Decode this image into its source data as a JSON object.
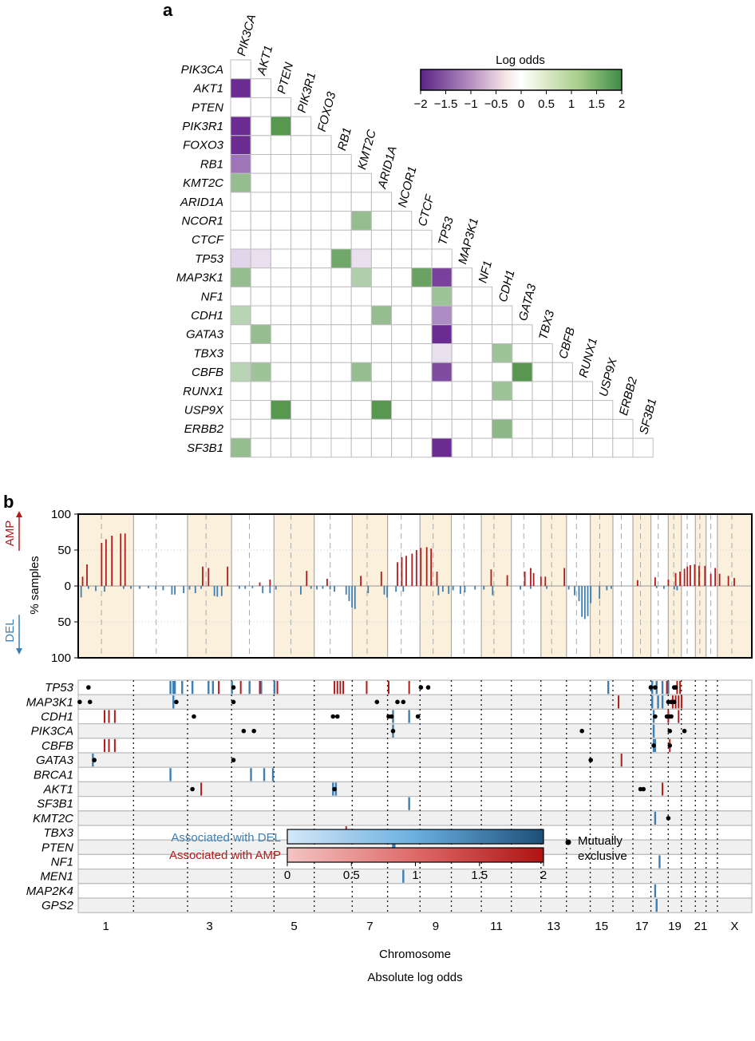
{
  "panel_a": {
    "label": "a",
    "chart_data": {
      "type": "heatmap",
      "genes": [
        "PIK3CA",
        "AKT1",
        "PTEN",
        "PIK3R1",
        "FOXO3",
        "RB1",
        "KMT2C",
        "ARID1A",
        "NCOR1",
        "CTCF",
        "TP53",
        "MAP3K1",
        "NF1",
        "CDH1",
        "GATA3",
        "TBX3",
        "CBFB",
        "RUNX1",
        "USP9X",
        "ERBB2",
        "SF3B1"
      ],
      "cells": [
        {
          "row": "AKT1",
          "col": "PIK3CA",
          "value": -2.0
        },
        {
          "row": "PIK3R1",
          "col": "PIK3CA",
          "value": -2.0
        },
        {
          "row": "PIK3R1",
          "col": "PTEN",
          "value": 1.9
        },
        {
          "row": "FOXO3",
          "col": "PIK3CA",
          "value": -2.0
        },
        {
          "row": "RB1",
          "col": "PIK3CA",
          "value": -1.3
        },
        {
          "row": "KMT2C",
          "col": "PIK3CA",
          "value": 1.2
        },
        {
          "row": "NCOR1",
          "col": "KMT2C",
          "value": 1.2
        },
        {
          "row": "TP53",
          "col": "PIK3CA",
          "value": -0.4
        },
        {
          "row": "TP53",
          "col": "AKT1",
          "value": -0.3
        },
        {
          "row": "TP53",
          "col": "RB1",
          "value": 1.6
        },
        {
          "row": "TP53",
          "col": "KMT2C",
          "value": -0.3
        },
        {
          "row": "MAP3K1",
          "col": "PIK3CA",
          "value": 1.2
        },
        {
          "row": "MAP3K1",
          "col": "KMT2C",
          "value": 0.9
        },
        {
          "row": "MAP3K1",
          "col": "CTCF",
          "value": 1.7
        },
        {
          "row": "MAP3K1",
          "col": "TP53",
          "value": -1.8
        },
        {
          "row": "NF1",
          "col": "TP53",
          "value": 1.1
        },
        {
          "row": "CDH1",
          "col": "PIK3CA",
          "value": 0.8
        },
        {
          "row": "CDH1",
          "col": "ARID1A",
          "value": 1.2
        },
        {
          "row": "CDH1",
          "col": "TP53",
          "value": -1.1
        },
        {
          "row": "GATA3",
          "col": "AKT1",
          "value": 1.2
        },
        {
          "row": "GATA3",
          "col": "TP53",
          "value": -2.0
        },
        {
          "row": "TBX3",
          "col": "TP53",
          "value": -0.3
        },
        {
          "row": "TBX3",
          "col": "CDH1",
          "value": 1.1
        },
        {
          "row": "CBFB",
          "col": "PIK3CA",
          "value": 0.8
        },
        {
          "row": "CBFB",
          "col": "AKT1",
          "value": 1.1
        },
        {
          "row": "CBFB",
          "col": "KMT2C",
          "value": 1.2
        },
        {
          "row": "CBFB",
          "col": "TP53",
          "value": -1.7
        },
        {
          "row": "CBFB",
          "col": "GATA3",
          "value": 1.9
        },
        {
          "row": "RUNX1",
          "col": "CDH1",
          "value": 1.1
        },
        {
          "row": "USP9X",
          "col": "PTEN",
          "value": 1.9
        },
        {
          "row": "USP9X",
          "col": "ARID1A",
          "value": 1.9
        },
        {
          "row": "ERBB2",
          "col": "CDH1",
          "value": 1.3
        },
        {
          "row": "SF3B1",
          "col": "PIK3CA",
          "value": 1.2
        },
        {
          "row": "SF3B1",
          "col": "TP53",
          "value": -2.0
        }
      ],
      "colorbar": {
        "title": "Log odds",
        "ticks": [
          "−2",
          "−1.5",
          "−1",
          "−0.5",
          "0",
          "0.5",
          "1",
          "1.5",
          "2"
        ],
        "range": [
          -2,
          2
        ],
        "neg_color": "#6a2c91",
        "mid_color": "#ffffff",
        "pos_color": "#4f9146"
      }
    }
  },
  "panel_b": {
    "label": "b",
    "top": {
      "ylabel": "% samples",
      "amp_label": "AMP",
      "del_label": "DEL",
      "yticks": [
        "100",
        "50",
        "0",
        "50",
        "100"
      ],
      "amp_color": "#b31b1b",
      "del_color": "#3e7fb3",
      "shade_color": "#fbf0dc",
      "chart_data": {
        "type": "bar",
        "amp": [
          [
            3,
            13
          ],
          [
            6,
            30
          ],
          [
            16,
            60
          ],
          [
            19,
            65
          ],
          [
            23,
            70
          ],
          [
            29,
            73
          ],
          [
            32,
            73
          ],
          [
            85,
            27
          ],
          [
            89,
            25
          ],
          [
            102,
            27
          ],
          [
            124,
            5
          ],
          [
            131,
            9
          ],
          [
            156,
            21
          ],
          [
            170,
            10
          ],
          [
            193,
            14
          ],
          [
            207,
            20
          ],
          [
            218,
            33
          ],
          [
            221,
            40
          ],
          [
            224,
            42
          ],
          [
            228,
            45
          ],
          [
            231,
            50
          ],
          [
            234,
            53
          ],
          [
            238,
            54
          ],
          [
            241,
            52
          ],
          [
            245,
            20
          ],
          [
            282,
            23
          ],
          [
            293,
            15
          ],
          [
            305,
            20
          ],
          [
            309,
            25
          ],
          [
            311,
            18
          ],
          [
            316,
            13
          ],
          [
            319,
            13
          ],
          [
            332,
            25
          ],
          [
            382,
            8
          ],
          [
            394,
            12
          ],
          [
            403,
            9
          ],
          [
            408,
            18
          ],
          [
            411,
            20
          ],
          [
            414,
            24
          ],
          [
            416,
            27
          ],
          [
            418,
            29
          ],
          [
            421,
            30
          ],
          [
            424,
            28
          ],
          [
            428,
            28
          ],
          [
            432,
            17
          ],
          [
            435,
            25
          ],
          [
            438,
            17
          ],
          [
            444,
            14
          ],
          [
            448,
            11
          ]
        ],
        "del": [
          [
            2,
            16
          ],
          [
            7,
            4
          ],
          [
            12,
            7
          ],
          [
            18,
            8
          ],
          [
            31,
            4
          ],
          [
            36,
            4
          ],
          [
            42,
            4
          ],
          [
            48,
            3
          ],
          [
            53,
            5
          ],
          [
            58,
            6
          ],
          [
            64,
            12
          ],
          [
            66,
            12
          ],
          [
            72,
            10
          ],
          [
            76,
            5
          ],
          [
            80,
            10
          ],
          [
            84,
            4
          ],
          [
            93,
            14
          ],
          [
            95,
            15
          ],
          [
            98,
            14
          ],
          [
            110,
            4
          ],
          [
            114,
            4
          ],
          [
            119,
            3
          ],
          [
            126,
            10
          ],
          [
            131,
            10
          ],
          [
            135,
            5
          ],
          [
            152,
            12
          ],
          [
            159,
            4
          ],
          [
            163,
            5
          ],
          [
            167,
            4
          ],
          [
            172,
            5
          ],
          [
            175,
            8
          ],
          [
            183,
            12
          ],
          [
            185,
            21
          ],
          [
            187,
            30
          ],
          [
            189,
            32
          ],
          [
            198,
            10
          ],
          [
            209,
            12
          ],
          [
            211,
            16
          ],
          [
            217,
            8
          ],
          [
            222,
            8
          ],
          [
            246,
            13
          ],
          [
            249,
            8
          ],
          [
            253,
            11
          ],
          [
            256,
            6
          ],
          [
            261,
            11
          ],
          [
            264,
            9
          ],
          [
            271,
            5
          ],
          [
            277,
            5
          ],
          [
            283,
            13
          ],
          [
            302,
            5
          ],
          [
            309,
            4
          ],
          [
            320,
            4
          ],
          [
            335,
            5
          ],
          [
            339,
            13
          ],
          [
            342,
            21
          ],
          [
            344,
            43
          ],
          [
            346,
            46
          ],
          [
            348,
            42
          ],
          [
            350,
            24
          ],
          [
            356,
            18
          ],
          [
            361,
            6
          ],
          [
            364,
            4
          ],
          [
            395,
            3
          ],
          [
            400,
            4
          ],
          [
            407,
            5
          ],
          [
            409,
            6
          ]
        ]
      }
    },
    "bottom": {
      "genes": [
        "TP53",
        "MAP3K1",
        "CDH1",
        "PIK3CA",
        "CBFB",
        "GATA3",
        "BRCA1",
        "AKT1",
        "SF3B1",
        "KMT2C",
        "TBX3",
        "PTEN",
        "NF1",
        "MEN1",
        "MAP2K4",
        "GPS2"
      ],
      "xlabel": "Chromosome",
      "x_ticks": [
        "1",
        "3",
        "5",
        "7",
        "9",
        "11",
        "13",
        "15",
        "17",
        "19",
        "21",
        "X"
      ],
      "chart_data": {
        "type": "scatter",
        "amp_lines": [
          [
            "TP53",
            [
              96,
              111,
              124,
              136,
              175,
              177,
              179,
              181,
              197,
              212,
              226,
              402,
              409,
              411
            ]
          ],
          [
            "MAP3K1",
            [
              369,
              406,
              408,
              410,
              412
            ]
          ],
          [
            "CDH1",
            [
              18,
              21,
              25,
              403,
              410
            ]
          ],
          [
            "CBFB",
            [
              18,
              21,
              25,
              404
            ]
          ],
          [
            "GATA3",
            [
              371
            ]
          ],
          [
            "AKT1",
            [
              84,
              399
            ]
          ],
          [
            "TBX3",
            [
              183
            ]
          ]
        ],
        "del_lines": [
          [
            "TP53",
            [
              63,
              65,
              66,
              71,
              78,
              89,
              92,
              105,
              117,
              125,
              134,
              362,
              392,
              395,
              399,
              403
            ]
          ],
          [
            "MAP3K1",
            [
              65,
              392,
              396,
              399
            ]
          ],
          [
            "CDH1",
            [
              215,
              226,
              393
            ]
          ],
          [
            "PIK3CA",
            [
              215,
              393
            ]
          ],
          [
            "CBFB",
            [
              393,
              394
            ]
          ],
          [
            "GATA3",
            [
              10
            ]
          ],
          [
            "BRCA1",
            [
              63,
              118,
              127,
              133
            ]
          ],
          [
            "AKT1",
            [
              174,
              176
            ]
          ],
          [
            "SF3B1",
            [
              226
            ]
          ],
          [
            "KMT2C",
            [
              394
            ]
          ],
          [
            "PTEN",
            [
              215,
              216
            ]
          ],
          [
            "NF1",
            [
              397
            ]
          ],
          [
            "MEN1",
            [
              222
            ]
          ],
          [
            "MAP2K4",
            [
              394
            ]
          ],
          [
            "GPS2",
            [
              395
            ]
          ]
        ],
        "dots": [
          [
            "TP53",
            [
              7,
              106,
              234,
              239,
              391,
              394,
              407,
              408
            ]
          ],
          [
            "MAP3K1",
            [
              1,
              8,
              67,
              106,
              204,
              218,
              222,
              403,
              405,
              407
            ]
          ],
          [
            "CDH1",
            [
              79,
              174,
              177,
              212,
              214,
              232,
              394,
              402,
              404,
              405
            ]
          ],
          [
            "PIK3CA",
            [
              113,
              120,
              215,
              344,
              404,
              414
            ]
          ],
          [
            "CBFB",
            [
              393,
              404
            ]
          ],
          [
            "GATA3",
            [
              11,
              106,
              350
            ]
          ],
          [
            "AKT1",
            [
              78,
              175,
              384,
              386
            ]
          ],
          [
            "KMT2C",
            [
              403
            ]
          ],
          [
            "TBX3",
            [
              177
            ]
          ]
        ]
      }
    },
    "legend": {
      "title": "Absolute log odds",
      "del_label": "Associated with DEL",
      "amp_label": "Associated with AMP",
      "dot_label_1": "Mutually",
      "dot_label_2": "exclusive",
      "ticks": [
        "0",
        "0.5",
        "1",
        "1.5",
        "2"
      ]
    }
  }
}
